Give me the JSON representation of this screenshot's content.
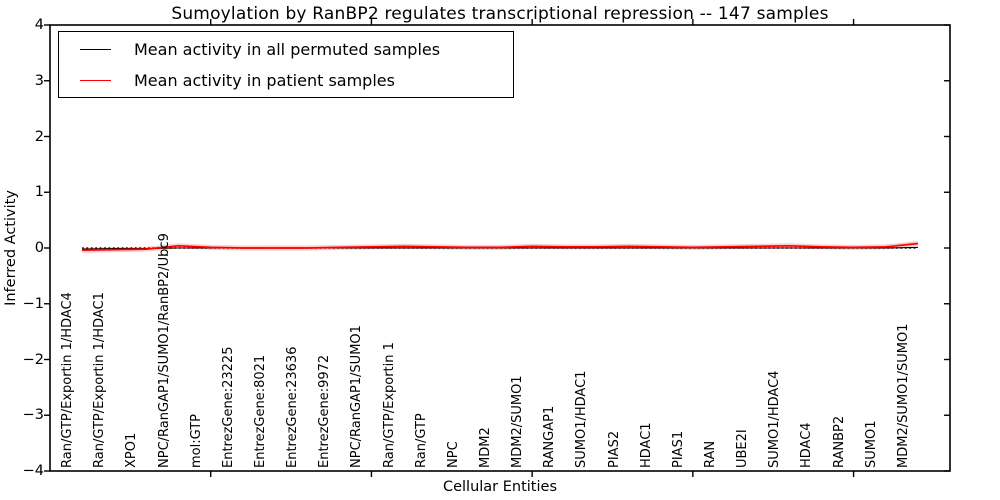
{
  "figure": {
    "title": "Sumoylation by RanBP2 regulates transcriptional repression -- 147 samples",
    "xlabel": "Cellular Entities",
    "ylabel": "Inferred Activity"
  },
  "legend": {
    "items": [
      {
        "label": "Mean activity in all permuted samples",
        "color": "#000000"
      },
      {
        "label": "Mean activity in patient samples",
        "color": "#ff0000"
      }
    ]
  },
  "axes": {
    "ytick_labels": [
      "4",
      "3",
      "2",
      "1",
      "0",
      "−1",
      "−2",
      "−3",
      "−4"
    ],
    "ytick_values": [
      4,
      3,
      2,
      1,
      0,
      -1,
      -2,
      -3,
      -4
    ],
    "xtick_major_values": [
      5,
      10,
      15,
      20,
      25
    ]
  },
  "chart_data": {
    "type": "line",
    "title": "Sumoylation by RanBP2 regulates transcriptional repression -- 147 samples",
    "xlabel": "Cellular Entities",
    "ylabel": "Inferred Activity",
    "ylim": [
      -4,
      4
    ],
    "xlim": [
      0,
      28
    ],
    "grid": false,
    "legend_position": "upper left",
    "zero_reference_line": 0,
    "categories": [
      "Ran/GTP/Exportin 1/HDAC4",
      "Ran/GTP/Exportin 1/HDAC1",
      "XPO1",
      "NPC/RanGAP1/SUMO1/RanBP2/Ubc9",
      "mol:GTP",
      "EntrezGene:23225",
      "EntrezGene:8021",
      "EntrezGene:23636",
      "EntrezGene:9972",
      "NPC/RanGAP1/SUMO1",
      "Ran/GTP/Exportin 1",
      "Ran/GTP",
      "NPC",
      "MDM2",
      "MDM2/SUMO1",
      "RANGAP1",
      "SUMO1/HDAC1",
      "PIAS2",
      "HDAC1",
      "PIAS1",
      "RAN",
      "UBE2I",
      "SUMO1/HDAC4",
      "HDAC4",
      "RANBP2",
      "SUMO1",
      "MDM2/SUMO1/SUMO1"
    ],
    "series": [
      {
        "name": "Mean activity in all permuted samples",
        "color": "#000000",
        "values": [
          -0.02,
          -0.01,
          -0.01,
          0.0,
          0.0,
          0.0,
          0.0,
          0.0,
          0.0,
          0.0,
          0.0,
          0.0,
          0.0,
          0.0,
          0.0,
          0.0,
          0.0,
          0.0,
          0.0,
          0.0,
          0.0,
          0.0,
          0.0,
          0.0,
          0.0,
          0.0,
          0.01
        ]
      },
      {
        "name": "Mean activity in patient samples",
        "color": "#ff0000",
        "values": [
          -0.04,
          -0.03,
          -0.02,
          0.04,
          0.01,
          0.0,
          0.0,
          0.0,
          0.01,
          0.02,
          0.03,
          0.02,
          0.01,
          0.01,
          0.03,
          0.02,
          0.02,
          0.03,
          0.02,
          0.01,
          0.02,
          0.03,
          0.04,
          0.02,
          0.01,
          0.02,
          0.08
        ]
      }
    ]
  }
}
